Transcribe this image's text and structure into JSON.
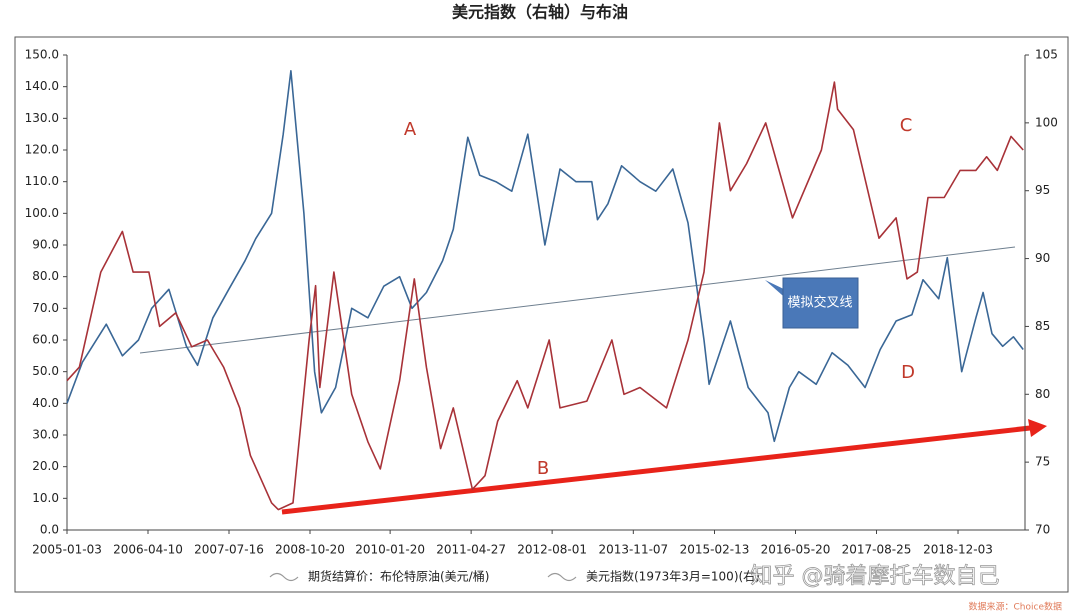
{
  "chart_data": {
    "type": "line",
    "title": "美元指数（右轴）与布油",
    "xlim": [
      "2005-01-03",
      "2019-12-20"
    ],
    "xticks": [
      "2005-01-03",
      "2006-04-10",
      "2007-07-16",
      "2008-10-20",
      "2010-01-20",
      "2011-04-27",
      "2012-08-01",
      "2013-11-07",
      "2015-02-13",
      "2016-05-20",
      "2017-08-25",
      "2018-12-03"
    ],
    "ylim": [
      0,
      150
    ],
    "yticks": [
      {
        "value": 0,
        "label": "0.0"
      },
      {
        "value": 10,
        "label": "10.0"
      },
      {
        "value": 20,
        "label": "20.0"
      },
      {
        "value": 30,
        "label": "30.0"
      },
      {
        "value": 40,
        "label": "40.0"
      },
      {
        "value": 50,
        "label": "50.0"
      },
      {
        "value": 60,
        "label": "60.0"
      },
      {
        "value": 70,
        "label": "70.0"
      },
      {
        "value": 80,
        "label": "80.0"
      },
      {
        "value": 90,
        "label": "90.0"
      },
      {
        "value": 100,
        "label": "100.0"
      },
      {
        "value": 110,
        "label": "110.0"
      },
      {
        "value": 120,
        "label": "120.0"
      },
      {
        "value": 130,
        "label": "130.0"
      },
      {
        "value": 140,
        "label": "140.0"
      },
      {
        "value": 150,
        "label": "150.0"
      }
    ],
    "y2lim": [
      70,
      105
    ],
    "y2ticks": [
      70,
      75,
      80,
      85,
      90,
      95,
      100,
      105
    ],
    "series": [
      {
        "name": "期货结算价：布伦特原油(美元/桶)",
        "color": "#3a6796",
        "x": [
          "2005-01-03",
          "2005-04-01",
          "2005-08-15",
          "2005-11-15",
          "2006-02-15",
          "2006-05-01",
          "2006-08-07",
          "2006-11-15",
          "2007-01-18",
          "2007-04-15",
          "2007-07-15",
          "2007-10-15",
          "2007-12-15",
          "2008-03-15",
          "2008-05-20",
          "2008-07-03",
          "2008-09-15",
          "2008-11-15",
          "2008-12-24",
          "2009-03-15",
          "2009-06-15",
          "2009-09-15",
          "2009-12-15",
          "2010-03-15",
          "2010-05-25",
          "2010-08-15",
          "2010-11-15",
          "2011-01-15",
          "2011-04-08",
          "2011-06-15",
          "2011-09-15",
          "2011-12-15",
          "2012-03-15",
          "2012-06-21",
          "2012-09-15",
          "2012-12-15",
          "2013-03-15",
          "2013-04-17",
          "2013-06-15",
          "2013-09-01",
          "2013-12-15",
          "2014-03-15",
          "2014-06-20",
          "2014-09-15",
          "2014-12-15",
          "2015-01-13",
          "2015-05-15",
          "2015-08-24",
          "2015-12-15",
          "2016-01-20",
          "2016-04-15",
          "2016-06-08",
          "2016-09-15",
          "2016-12-15",
          "2017-03-15",
          "2017-06-21",
          "2017-09-15",
          "2017-12-15",
          "2018-03-15",
          "2018-05-17",
          "2018-08-15",
          "2018-10-03",
          "2018-12-24",
          "2019-03-15",
          "2019-04-25",
          "2019-06-15",
          "2019-08-15",
          "2019-10-15",
          "2019-12-10"
        ],
        "values": [
          40,
          53,
          65,
          55,
          60,
          70,
          76,
          58,
          52,
          67,
          76,
          85,
          92,
          100,
          125,
          145,
          100,
          50,
          37,
          45,
          70,
          67,
          77,
          80,
          70,
          75,
          85,
          95,
          124,
          112,
          110,
          107,
          125,
          90,
          114,
          110,
          110,
          98,
          103,
          115,
          110,
          107,
          114,
          97,
          60,
          46,
          66,
          45,
          37,
          28,
          45,
          50,
          46,
          56,
          52,
          45,
          57,
          66,
          68,
          79,
          73,
          86,
          50,
          67,
          75,
          62,
          58,
          61,
          57
        ]
      },
      {
        "name": "美元指数(1973年3月=100)(右)",
        "color": "#a83238",
        "axis": "y2",
        "x": [
          "2005-01-03",
          "2005-03-15",
          "2005-07-15",
          "2005-11-15",
          "2006-01-15",
          "2006-04-15",
          "2006-06-15",
          "2006-09-15",
          "2006-12-15",
          "2007-03-15",
          "2007-06-15",
          "2007-09-15",
          "2007-11-15",
          "2008-03-15",
          "2008-04-22",
          "2008-07-15",
          "2008-08-15",
          "2008-10-15",
          "2008-11-21",
          "2008-12-15",
          "2009-03-05",
          "2009-06-15",
          "2009-09-15",
          "2009-11-25",
          "2010-03-15",
          "2010-06-07",
          "2010-08-15",
          "2010-11-04",
          "2011-01-15",
          "2011-05-04",
          "2011-07-15",
          "2011-09-25",
          "2012-01-15",
          "2012-03-15",
          "2012-07-15",
          "2012-09-15",
          "2013-02-15",
          "2013-07-08",
          "2013-09-15",
          "2013-12-15",
          "2014-05-15",
          "2014-09-15",
          "2014-12-15",
          "2015-03-13",
          "2015-05-15",
          "2015-08-15",
          "2015-12-02",
          "2016-05-03",
          "2016-10-15",
          "2016-12-28",
          "2017-01-15",
          "2017-04-15",
          "2017-09-08",
          "2017-12-15",
          "2018-02-15",
          "2018-04-15",
          "2018-06-15",
          "2018-09-15",
          "2018-12-15",
          "2019-03-15",
          "2019-05-15",
          "2019-07-15",
          "2019-10-01",
          "2019-12-10"
        ],
        "values": [
          81,
          82,
          89,
          92,
          89,
          89,
          85,
          86,
          83.5,
          84,
          82,
          79,
          75.5,
          72,
          71.5,
          72,
          76,
          84,
          88,
          80.5,
          89,
          80,
          76.5,
          74.5,
          81,
          88.5,
          82,
          76,
          79,
          73,
          74,
          78,
          81,
          79,
          84,
          79,
          79.5,
          84,
          80,
          80.5,
          79,
          84,
          89,
          100,
          95,
          97,
          100,
          93,
          98,
          103,
          101,
          99.5,
          91.5,
          93,
          88.5,
          89,
          94.5,
          94.5,
          96.5,
          96.5,
          97.5,
          96.5,
          99,
          98
        ]
      }
    ],
    "annotations": [
      "A",
      "B",
      "C",
      "D",
      "模拟交叉线"
    ],
    "watermark": "知乎 @骑着摩托车数自己",
    "source": "数据来源：Choice数据"
  }
}
